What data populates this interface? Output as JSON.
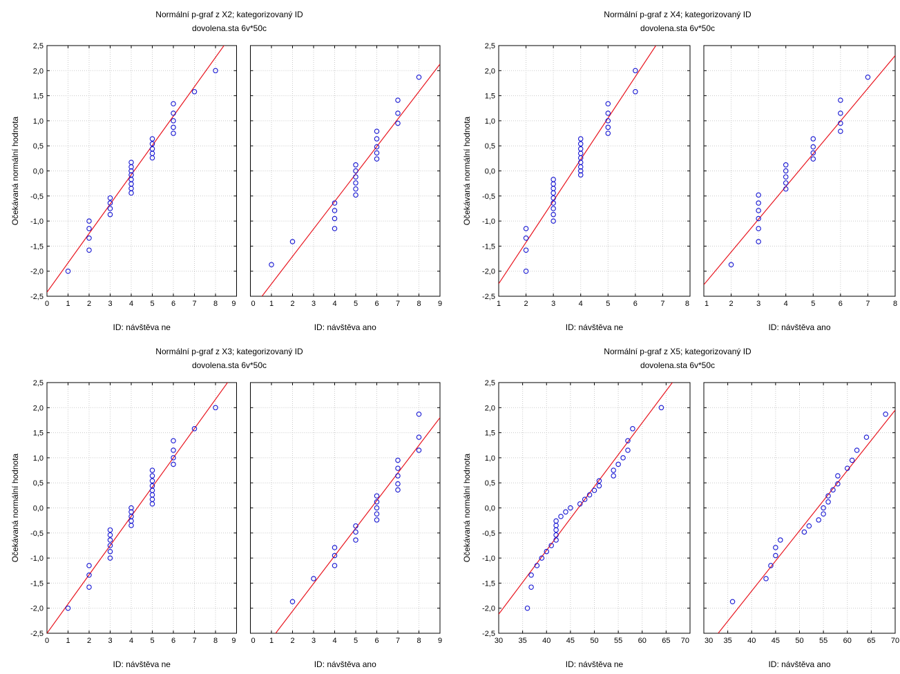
{
  "colors": {
    "point": "#1414d2",
    "line": "#e8141e",
    "grid": "#c8c8c8",
    "frame": "#000000"
  },
  "chart_data": [
    {
      "type": "scatter",
      "title": "Normální p-graf z X2; kategorizovaný ID",
      "subtitle": "dovolena.sta 6v*50c",
      "ylabel": "Očekávaná normální hodnota",
      "ylim": [
        -2.5,
        2.5
      ],
      "yticks": [
        "2,5",
        "2,0",
        "1,5",
        "1,0",
        "0,5",
        "0,0",
        "-0,5",
        "-1,0",
        "-1,5",
        "-2,0",
        "-2,5"
      ],
      "grid": true,
      "panels": [
        {
          "xlabel": "ID: návštěva ne",
          "xlim": [
            0,
            9
          ],
          "xticks": [
            "0",
            "1",
            "2",
            "3",
            "4",
            "5",
            "6",
            "7",
            "8",
            "9"
          ],
          "fit_line": [
            [
              0,
              -2.42
            ],
            [
              9,
              2.85
            ]
          ],
          "points": [
            [
              1,
              -2.0
            ],
            [
              2,
              -1.58
            ],
            [
              2,
              -1.34
            ],
            [
              2,
              -1.15
            ],
            [
              2,
              -1.0
            ],
            [
              3,
              -0.87
            ],
            [
              3,
              -0.75
            ],
            [
              3,
              -0.64
            ],
            [
              3,
              -0.54
            ],
            [
              4,
              -0.44
            ],
            [
              4,
              -0.35
            ],
            [
              4,
              -0.26
            ],
            [
              4,
              -0.17
            ],
            [
              4,
              -0.08
            ],
            [
              4,
              0.0
            ],
            [
              4,
              0.08
            ],
            [
              4,
              0.17
            ],
            [
              5,
              0.26
            ],
            [
              5,
              0.35
            ],
            [
              5,
              0.44
            ],
            [
              5,
              0.54
            ],
            [
              5,
              0.64
            ],
            [
              6,
              0.75
            ],
            [
              6,
              0.87
            ],
            [
              6,
              1.0
            ],
            [
              6,
              1.15
            ],
            [
              6,
              1.34
            ],
            [
              7,
              1.58
            ],
            [
              8,
              2.0
            ]
          ]
        },
        {
          "xlabel": "ID: návštěva ano",
          "xlim": [
            0,
            9
          ],
          "xticks": [
            "0",
            "1",
            "2",
            "3",
            "4",
            "5",
            "6",
            "7",
            "8",
            "9"
          ],
          "fit_line": [
            [
              0.55,
              -2.5
            ],
            [
              9,
              2.13
            ]
          ],
          "points": [
            [
              1,
              -1.87
            ],
            [
              2,
              -1.41
            ],
            [
              4,
              -1.15
            ],
            [
              4,
              -0.95
            ],
            [
              4,
              -0.79
            ],
            [
              4,
              -0.64
            ],
            [
              5,
              -0.48
            ],
            [
              5,
              -0.36
            ],
            [
              5,
              -0.24
            ],
            [
              5,
              -0.12
            ],
            [
              5,
              0.0
            ],
            [
              5,
              0.12
            ],
            [
              6,
              0.24
            ],
            [
              6,
              0.36
            ],
            [
              6,
              0.48
            ],
            [
              6,
              0.64
            ],
            [
              6,
              0.79
            ],
            [
              7,
              0.95
            ],
            [
              7,
              1.15
            ],
            [
              7,
              1.41
            ],
            [
              8,
              1.87
            ]
          ]
        }
      ]
    },
    {
      "type": "scatter",
      "title": "Normální p-graf z X4; kategorizovaný ID",
      "subtitle": "dovolena.sta 6v*50c",
      "ylabel": "Očekávaná normální hodnota",
      "ylim": [
        -2.5,
        2.5
      ],
      "yticks": [
        "2,5",
        "2,0",
        "1,5",
        "1,0",
        "0,5",
        "0,0",
        "-0,5",
        "-1,0",
        "-1,5",
        "-2,0",
        "-2,5"
      ],
      "grid": true,
      "panels": [
        {
          "xlabel": "ID: návštěva ne",
          "xlim": [
            1,
            8
          ],
          "xticks": [
            "1",
            "2",
            "3",
            "4",
            "5",
            "6",
            "7",
            "8"
          ],
          "fit_line": [
            [
              1,
              -2.25
            ],
            [
              6.75,
              2.5
            ]
          ],
          "points": [
            [
              2,
              -2.0
            ],
            [
              2,
              -1.58
            ],
            [
              2,
              -1.34
            ],
            [
              2,
              -1.15
            ],
            [
              3,
              -1.0
            ],
            [
              3,
              -0.87
            ],
            [
              3,
              -0.75
            ],
            [
              3,
              -0.64
            ],
            [
              3,
              -0.54
            ],
            [
              3,
              -0.44
            ],
            [
              3,
              -0.35
            ],
            [
              3,
              -0.26
            ],
            [
              3,
              -0.17
            ],
            [
              4,
              -0.08
            ],
            [
              4,
              0.0
            ],
            [
              4,
              0.08
            ],
            [
              4,
              0.17
            ],
            [
              4,
              0.26
            ],
            [
              4,
              0.35
            ],
            [
              4,
              0.44
            ],
            [
              4,
              0.54
            ],
            [
              4,
              0.64
            ],
            [
              5,
              0.75
            ],
            [
              5,
              0.87
            ],
            [
              5,
              1.0
            ],
            [
              5,
              1.15
            ],
            [
              5,
              1.34
            ],
            [
              6,
              1.58
            ],
            [
              6,
              2.0
            ]
          ]
        },
        {
          "xlabel": "ID: návštěva ano",
          "xlim": [
            1,
            8
          ],
          "xticks": [
            "1",
            "2",
            "3",
            "4",
            "5",
            "6",
            "7",
            "8"
          ],
          "fit_line": [
            [
              1,
              -2.27
            ],
            [
              8,
              2.3
            ]
          ],
          "points": [
            [
              2,
              -1.87
            ],
            [
              3,
              -1.41
            ],
            [
              3,
              -1.15
            ],
            [
              3,
              -0.95
            ],
            [
              3,
              -0.79
            ],
            [
              3,
              -0.64
            ],
            [
              3,
              -0.48
            ],
            [
              4,
              -0.36
            ],
            [
              4,
              -0.24
            ],
            [
              4,
              -0.12
            ],
            [
              4,
              0.0
            ],
            [
              4,
              0.12
            ],
            [
              5,
              0.24
            ],
            [
              5,
              0.36
            ],
            [
              5,
              0.48
            ],
            [
              5,
              0.64
            ],
            [
              6,
              0.79
            ],
            [
              6,
              0.95
            ],
            [
              6,
              1.15
            ],
            [
              6,
              1.41
            ],
            [
              7,
              1.87
            ]
          ]
        }
      ]
    },
    {
      "type": "scatter",
      "title": "Normální p-graf z X3; kategorizovaný ID",
      "subtitle": "dovolena.sta 6v*50c",
      "ylabel": "Očekávaná normální hodnota",
      "ylim": [
        -2.5,
        2.5
      ],
      "yticks": [
        "2,5",
        "2,0",
        "1,5",
        "1,0",
        "0,5",
        "0,0",
        "-0,5",
        "-1,0",
        "-1,5",
        "-2,0",
        "-2,5"
      ],
      "grid": true,
      "panels": [
        {
          "xlabel": "ID: návštěva ne",
          "xlim": [
            0,
            9
          ],
          "xticks": [
            "0",
            "1",
            "2",
            "3",
            "4",
            "5",
            "6",
            "7",
            "8",
            "9"
          ],
          "fit_line": [
            [
              0,
              -2.5
            ],
            [
              9,
              2.75
            ]
          ],
          "points": [
            [
              1,
              -2.0
            ],
            [
              2,
              -1.58
            ],
            [
              2,
              -1.34
            ],
            [
              2,
              -1.15
            ],
            [
              3,
              -1.0
            ],
            [
              3,
              -0.87
            ],
            [
              3,
              -0.75
            ],
            [
              3,
              -0.64
            ],
            [
              3,
              -0.54
            ],
            [
              3,
              -0.44
            ],
            [
              4,
              -0.35
            ],
            [
              4,
              -0.26
            ],
            [
              4,
              -0.17
            ],
            [
              4,
              -0.08
            ],
            [
              4,
              0.0
            ],
            [
              5,
              0.08
            ],
            [
              5,
              0.17
            ],
            [
              5,
              0.26
            ],
            [
              5,
              0.35
            ],
            [
              5,
              0.44
            ],
            [
              5,
              0.54
            ],
            [
              5,
              0.64
            ],
            [
              5,
              0.75
            ],
            [
              6,
              0.87
            ],
            [
              6,
              1.0
            ],
            [
              6,
              1.15
            ],
            [
              6,
              1.34
            ],
            [
              7,
              1.58
            ],
            [
              8,
              2.0
            ]
          ]
        },
        {
          "xlabel": "ID: návštěva ano",
          "xlim": [
            0,
            9
          ],
          "xticks": [
            "0",
            "1",
            "2",
            "3",
            "4",
            "5",
            "6",
            "7",
            "8",
            "9"
          ],
          "fit_line": [
            [
              1.2,
              -2.5
            ],
            [
              9,
              1.8
            ]
          ],
          "points": [
            [
              2,
              -1.87
            ],
            [
              3,
              -1.41
            ],
            [
              4,
              -1.15
            ],
            [
              4,
              -0.95
            ],
            [
              4,
              -0.79
            ],
            [
              5,
              -0.64
            ],
            [
              5,
              -0.48
            ],
            [
              5,
              -0.36
            ],
            [
              6,
              -0.24
            ],
            [
              6,
              -0.12
            ],
            [
              6,
              0.0
            ],
            [
              6,
              0.12
            ],
            [
              6,
              0.24
            ],
            [
              7,
              0.36
            ],
            [
              7,
              0.48
            ],
            [
              7,
              0.64
            ],
            [
              7,
              0.79
            ],
            [
              7,
              0.95
            ],
            [
              8,
              1.15
            ],
            [
              8,
              1.41
            ],
            [
              8,
              1.87
            ]
          ]
        }
      ]
    },
    {
      "type": "scatter",
      "title": "Normální p-graf z X5; kategorizovaný ID",
      "subtitle": "dovolena.sta 6v*50c",
      "ylabel": "Očekávaná normální hodnota",
      "ylim": [
        -2.5,
        2.5
      ],
      "yticks": [
        "2,5",
        "2,0",
        "1,5",
        "1,0",
        "0,5",
        "0,0",
        "-0,5",
        "-1,0",
        "-1,5",
        "-2,0",
        "-2,5"
      ],
      "grid": true,
      "panels": [
        {
          "xlabel": "ID: návštěva ne",
          "xlim": [
            30,
            70
          ],
          "xticks": [
            "30",
            "35",
            "40",
            "45",
            "50",
            "55",
            "60",
            "65",
            "70"
          ],
          "fit_line": [
            [
              30,
              -2.12
            ],
            [
              66.3,
              2.5
            ]
          ],
          "points": [
            [
              36,
              -2.0
            ],
            [
              36.8,
              -1.58
            ],
            [
              36.8,
              -1.34
            ],
            [
              38,
              -1.15
            ],
            [
              39,
              -1.0
            ],
            [
              40,
              -0.87
            ],
            [
              41,
              -0.75
            ],
            [
              42,
              -0.64
            ],
            [
              42,
              -0.54
            ],
            [
              42,
              -0.44
            ],
            [
              42,
              -0.35
            ],
            [
              42,
              -0.26
            ],
            [
              43,
              -0.17
            ],
            [
              44,
              -0.08
            ],
            [
              45,
              0.0
            ],
            [
              47,
              0.08
            ],
            [
              48,
              0.17
            ],
            [
              49,
              0.26
            ],
            [
              50,
              0.35
            ],
            [
              51,
              0.44
            ],
            [
              51,
              0.54
            ],
            [
              54,
              0.64
            ],
            [
              54,
              0.75
            ],
            [
              55,
              0.87
            ],
            [
              56,
              1.0
            ],
            [
              57,
              1.15
            ],
            [
              57,
              1.34
            ],
            [
              58,
              1.58
            ],
            [
              64,
              2.0
            ]
          ]
        },
        {
          "xlabel": "ID: návštěva ano",
          "xlim": [
            30,
            70
          ],
          "xticks": [
            "30",
            "35",
            "40",
            "45",
            "50",
            "55",
            "60",
            "65",
            "70"
          ],
          "fit_line": [
            [
              33,
              -2.5
            ],
            [
              70,
              1.95
            ]
          ],
          "points": [
            [
              36,
              -1.87
            ],
            [
              43,
              -1.41
            ],
            [
              44,
              -1.15
            ],
            [
              45,
              -0.95
            ],
            [
              45,
              -0.79
            ],
            [
              46,
              -0.64
            ],
            [
              51,
              -0.48
            ],
            [
              52,
              -0.36
            ],
            [
              54,
              -0.24
            ],
            [
              55,
              -0.12
            ],
            [
              55,
              0.0
            ],
            [
              56,
              0.12
            ],
            [
              56,
              0.24
            ],
            [
              57,
              0.36
            ],
            [
              58,
              0.48
            ],
            [
              58,
              0.64
            ],
            [
              60,
              0.79
            ],
            [
              61,
              0.95
            ],
            [
              62,
              1.15
            ],
            [
              64,
              1.41
            ],
            [
              68,
              1.87
            ]
          ]
        }
      ]
    }
  ]
}
